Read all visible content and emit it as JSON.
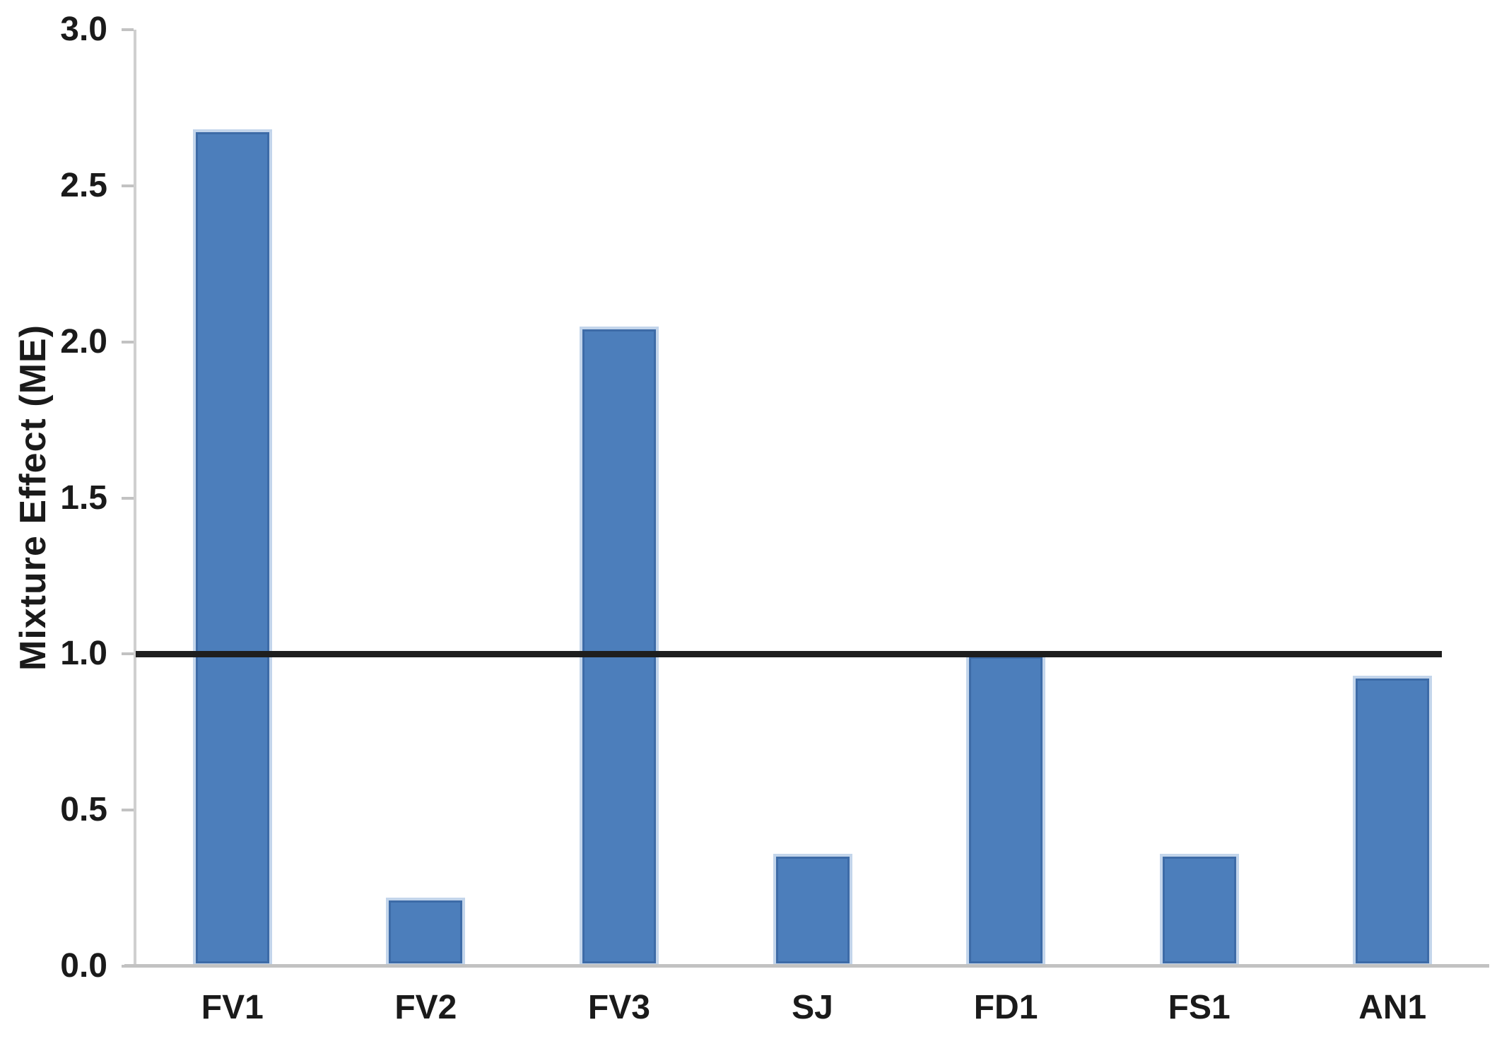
{
  "chart_data": {
    "type": "bar",
    "categories": [
      "FV1",
      "FV2",
      "FV3",
      "SJ",
      "FD1",
      "FS1",
      "AN1"
    ],
    "values": [
      2.68,
      0.22,
      2.05,
      0.36,
      1.0,
      0.36,
      0.93
    ],
    "title": "",
    "xlabel": "",
    "ylabel": "Mixture Effect (ME)",
    "ylim": [
      0,
      3.0
    ],
    "yticks": [
      0.0,
      0.5,
      1.0,
      1.5,
      2.0,
      2.5,
      3.0
    ],
    "ytick_labels": [
      "0.0",
      "0.5",
      "1.0",
      "1.5",
      "2.0",
      "2.5",
      "3.0"
    ],
    "grid": false,
    "legend": false,
    "reference_line": {
      "y": 1.0,
      "color": "#1e1e1e"
    },
    "colors": {
      "bar_fill": "#4c7ebb",
      "bar_border": "#c3d5eb",
      "bar_inner_edge": "#3d6ba7",
      "axis_line": "#cfcfcf",
      "tick": "#c2c2c2",
      "text": "#1a1a1a",
      "background": "#ffffff"
    }
  }
}
